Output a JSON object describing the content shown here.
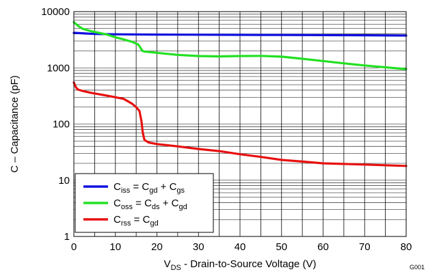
{
  "chart_data": {
    "type": "line",
    "title": "",
    "xlabel": {
      "main": "V",
      "sub": "DS",
      "rest": " - Drain-to-Source Voltage (V)"
    },
    "ylabel": "C – Capacitance  (pF)",
    "xlim": [
      0,
      80
    ],
    "ylim": [
      1,
      10000
    ],
    "yscale": "log",
    "grid": true,
    "legend_position": "bottom-left",
    "x_ticks": [
      "0",
      "10",
      "20",
      "30",
      "40",
      "50",
      "60",
      "70",
      "80"
    ],
    "y_ticks": [
      "1",
      "10",
      "100",
      "1000",
      "10000"
    ],
    "figure_id": "G001",
    "series": [
      {
        "name": "Ciss = Cgd + Cgs",
        "color": "#1010e0",
        "label_parts": [
          [
            "C",
            ""
          ],
          [
            "iss",
            "sub"
          ],
          [
            " = C",
            ""
          ],
          [
            "gd",
            "sub"
          ],
          [
            " + C",
            ""
          ],
          [
            "gs",
            "sub"
          ]
        ],
        "x": [
          0,
          5,
          10,
          20,
          30,
          40,
          50,
          60,
          70,
          80
        ],
        "y": [
          4200,
          4000,
          3950,
          3900,
          3880,
          3860,
          3840,
          3820,
          3800,
          3750
        ]
      },
      {
        "name": "Coss = Cds + Cgd",
        "color": "#22e022",
        "label_parts": [
          [
            "C",
            ""
          ],
          [
            "oss",
            "sub"
          ],
          [
            " = C",
            ""
          ],
          [
            "ds",
            "sub"
          ],
          [
            " + C",
            ""
          ],
          [
            "gd",
            "sub"
          ]
        ],
        "x": [
          0,
          1,
          2,
          4,
          6,
          8,
          10,
          12,
          14,
          15.5,
          16,
          16.5,
          17,
          20,
          25,
          30,
          35,
          40,
          45,
          50,
          55,
          60,
          65,
          70,
          75,
          80
        ],
        "y": [
          6500,
          5600,
          5000,
          4500,
          4200,
          3900,
          3500,
          3200,
          2900,
          2600,
          2300,
          2000,
          1950,
          1850,
          1700,
          1620,
          1600,
          1620,
          1630,
          1580,
          1450,
          1320,
          1200,
          1100,
          1020,
          950
        ]
      },
      {
        "name": "Crss = Cgd",
        "color": "#e81010",
        "label_parts": [
          [
            "C",
            ""
          ],
          [
            "rss",
            "sub"
          ],
          [
            " =  C",
            ""
          ],
          [
            "gd",
            "sub"
          ]
        ],
        "x": [
          0,
          0.5,
          1,
          2,
          4,
          6,
          8,
          10,
          12,
          14,
          15,
          15.8,
          16.3,
          16.6,
          17,
          18,
          20,
          25,
          30,
          35,
          40,
          45,
          50,
          55,
          60,
          65,
          70,
          75,
          80
        ],
        "y": [
          550,
          450,
          410,
          390,
          360,
          340,
          320,
          300,
          280,
          230,
          200,
          170,
          110,
          70,
          52,
          47,
          44,
          40,
          36,
          33,
          29,
          26,
          23,
          21.5,
          20,
          19.5,
          19,
          18.5,
          18
        ]
      }
    ]
  }
}
